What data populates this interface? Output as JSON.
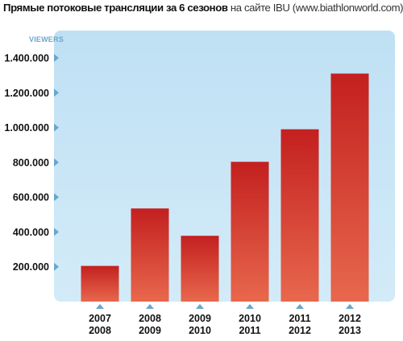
{
  "title": {
    "bold_part": "Прямые потоковые трансляции за 6 сезонов",
    "light_part": "на сайте IBU (www.biathlonworld.com)"
  },
  "chart_data": {
    "type": "bar",
    "title": "Прямые потоковые трансляции за 6 сезонов на сайте IBU (www.biathlonworld.com)",
    "ylabel": "VIEWERS",
    "xlabel": "",
    "categories": [
      [
        "2007",
        "2008"
      ],
      [
        "2008",
        "2009"
      ],
      [
        "2009",
        "2010"
      ],
      [
        "2010",
        "2011"
      ],
      [
        "2011",
        "2012"
      ],
      [
        "2012",
        "2013"
      ]
    ],
    "values": [
      205000,
      535000,
      378000,
      803000,
      990000,
      1310000
    ],
    "ylim": [
      0,
      1400000
    ],
    "yticks": [
      200000,
      400000,
      600000,
      800000,
      1000000,
      1200000,
      1400000
    ],
    "ytick_labels": [
      "200.000",
      "400.000",
      "600.000",
      "800.000",
      "1.000.000",
      "1.200.000",
      "1.400.000"
    ],
    "grid": false,
    "legend": "none",
    "colors": {
      "plot_bg": "#bfe1f5",
      "plot_bg_light": "#d9eefa",
      "bar_top": "#c3201f",
      "bar_bottom": "#e8674b",
      "marker": "#6aa6cc",
      "axis_label": "#6aa6cc"
    }
  }
}
